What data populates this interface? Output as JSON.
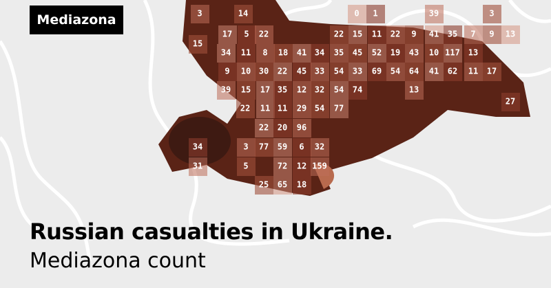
{
  "logo": "Mediazona",
  "title": "Russian casualties in Ukraine.",
  "subtitle": "Mediazona count",
  "grid": [
    [
      3,
      14,
      0,
      1,
      39,
      3
    ],
    [
      15,
      17,
      5,
      22,
      22,
      15,
      11,
      22,
      9,
      41,
      35,
      7,
      9,
      13
    ],
    [
      34,
      11,
      8,
      18,
      41,
      34,
      35,
      45,
      52,
      19,
      43,
      10,
      117,
      13
    ],
    [
      9,
      10,
      30,
      22,
      45,
      33,
      54,
      33,
      69,
      54,
      64,
      41,
      62,
      11,
      17
    ],
    [
      39,
      15,
      17,
      35,
      12,
      32,
      54,
      74,
      13
    ],
    [
      22,
      11,
      11,
      29,
      54,
      77,
      27
    ],
    [
      22,
      20,
      96
    ],
    [
      34,
      3,
      77,
      59,
      6,
      32
    ],
    [
      31,
      5,
      72,
      12,
      159
    ],
    [
      25,
      65,
      18
    ]
  ]
}
